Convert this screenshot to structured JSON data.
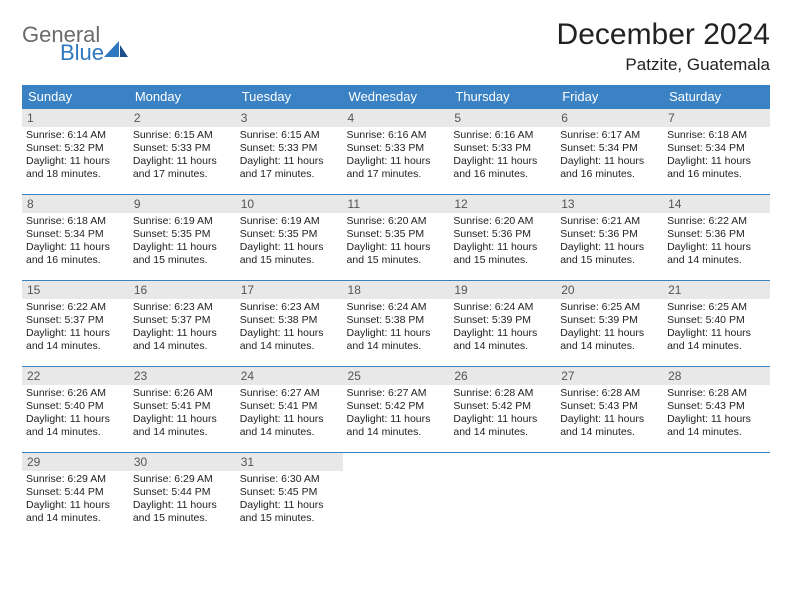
{
  "brand": {
    "line1": "General",
    "line2": "Blue"
  },
  "title": "December 2024",
  "location": "Patzite, Guatemala",
  "colors": {
    "header_bg": "#3a82c4",
    "header_fg": "#ffffff",
    "daynum_bg": "#e8e8e8",
    "rule": "#3a82c4",
    "brand_gray": "#6b6b6b",
    "brand_blue": "#2f78c1"
  },
  "weekdays": [
    "Sunday",
    "Monday",
    "Tuesday",
    "Wednesday",
    "Thursday",
    "Friday",
    "Saturday"
  ],
  "weeks": [
    [
      {
        "n": "1",
        "sr": "Sunrise: 6:14 AM",
        "ss": "Sunset: 5:32 PM",
        "d1": "Daylight: 11 hours",
        "d2": "and 18 minutes."
      },
      {
        "n": "2",
        "sr": "Sunrise: 6:15 AM",
        "ss": "Sunset: 5:33 PM",
        "d1": "Daylight: 11 hours",
        "d2": "and 17 minutes."
      },
      {
        "n": "3",
        "sr": "Sunrise: 6:15 AM",
        "ss": "Sunset: 5:33 PM",
        "d1": "Daylight: 11 hours",
        "d2": "and 17 minutes."
      },
      {
        "n": "4",
        "sr": "Sunrise: 6:16 AM",
        "ss": "Sunset: 5:33 PM",
        "d1": "Daylight: 11 hours",
        "d2": "and 17 minutes."
      },
      {
        "n": "5",
        "sr": "Sunrise: 6:16 AM",
        "ss": "Sunset: 5:33 PM",
        "d1": "Daylight: 11 hours",
        "d2": "and 16 minutes."
      },
      {
        "n": "6",
        "sr": "Sunrise: 6:17 AM",
        "ss": "Sunset: 5:34 PM",
        "d1": "Daylight: 11 hours",
        "d2": "and 16 minutes."
      },
      {
        "n": "7",
        "sr": "Sunrise: 6:18 AM",
        "ss": "Sunset: 5:34 PM",
        "d1": "Daylight: 11 hours",
        "d2": "and 16 minutes."
      }
    ],
    [
      {
        "n": "8",
        "sr": "Sunrise: 6:18 AM",
        "ss": "Sunset: 5:34 PM",
        "d1": "Daylight: 11 hours",
        "d2": "and 16 minutes."
      },
      {
        "n": "9",
        "sr": "Sunrise: 6:19 AM",
        "ss": "Sunset: 5:35 PM",
        "d1": "Daylight: 11 hours",
        "d2": "and 15 minutes."
      },
      {
        "n": "10",
        "sr": "Sunrise: 6:19 AM",
        "ss": "Sunset: 5:35 PM",
        "d1": "Daylight: 11 hours",
        "d2": "and 15 minutes."
      },
      {
        "n": "11",
        "sr": "Sunrise: 6:20 AM",
        "ss": "Sunset: 5:35 PM",
        "d1": "Daylight: 11 hours",
        "d2": "and 15 minutes."
      },
      {
        "n": "12",
        "sr": "Sunrise: 6:20 AM",
        "ss": "Sunset: 5:36 PM",
        "d1": "Daylight: 11 hours",
        "d2": "and 15 minutes."
      },
      {
        "n": "13",
        "sr": "Sunrise: 6:21 AM",
        "ss": "Sunset: 5:36 PM",
        "d1": "Daylight: 11 hours",
        "d2": "and 15 minutes."
      },
      {
        "n": "14",
        "sr": "Sunrise: 6:22 AM",
        "ss": "Sunset: 5:36 PM",
        "d1": "Daylight: 11 hours",
        "d2": "and 14 minutes."
      }
    ],
    [
      {
        "n": "15",
        "sr": "Sunrise: 6:22 AM",
        "ss": "Sunset: 5:37 PM",
        "d1": "Daylight: 11 hours",
        "d2": "and 14 minutes."
      },
      {
        "n": "16",
        "sr": "Sunrise: 6:23 AM",
        "ss": "Sunset: 5:37 PM",
        "d1": "Daylight: 11 hours",
        "d2": "and 14 minutes."
      },
      {
        "n": "17",
        "sr": "Sunrise: 6:23 AM",
        "ss": "Sunset: 5:38 PM",
        "d1": "Daylight: 11 hours",
        "d2": "and 14 minutes."
      },
      {
        "n": "18",
        "sr": "Sunrise: 6:24 AM",
        "ss": "Sunset: 5:38 PM",
        "d1": "Daylight: 11 hours",
        "d2": "and 14 minutes."
      },
      {
        "n": "19",
        "sr": "Sunrise: 6:24 AM",
        "ss": "Sunset: 5:39 PM",
        "d1": "Daylight: 11 hours",
        "d2": "and 14 minutes."
      },
      {
        "n": "20",
        "sr": "Sunrise: 6:25 AM",
        "ss": "Sunset: 5:39 PM",
        "d1": "Daylight: 11 hours",
        "d2": "and 14 minutes."
      },
      {
        "n": "21",
        "sr": "Sunrise: 6:25 AM",
        "ss": "Sunset: 5:40 PM",
        "d1": "Daylight: 11 hours",
        "d2": "and 14 minutes."
      }
    ],
    [
      {
        "n": "22",
        "sr": "Sunrise: 6:26 AM",
        "ss": "Sunset: 5:40 PM",
        "d1": "Daylight: 11 hours",
        "d2": "and 14 minutes."
      },
      {
        "n": "23",
        "sr": "Sunrise: 6:26 AM",
        "ss": "Sunset: 5:41 PM",
        "d1": "Daylight: 11 hours",
        "d2": "and 14 minutes."
      },
      {
        "n": "24",
        "sr": "Sunrise: 6:27 AM",
        "ss": "Sunset: 5:41 PM",
        "d1": "Daylight: 11 hours",
        "d2": "and 14 minutes."
      },
      {
        "n": "25",
        "sr": "Sunrise: 6:27 AM",
        "ss": "Sunset: 5:42 PM",
        "d1": "Daylight: 11 hours",
        "d2": "and 14 minutes."
      },
      {
        "n": "26",
        "sr": "Sunrise: 6:28 AM",
        "ss": "Sunset: 5:42 PM",
        "d1": "Daylight: 11 hours",
        "d2": "and 14 minutes."
      },
      {
        "n": "27",
        "sr": "Sunrise: 6:28 AM",
        "ss": "Sunset: 5:43 PM",
        "d1": "Daylight: 11 hours",
        "d2": "and 14 minutes."
      },
      {
        "n": "28",
        "sr": "Sunrise: 6:28 AM",
        "ss": "Sunset: 5:43 PM",
        "d1": "Daylight: 11 hours",
        "d2": "and 14 minutes."
      }
    ],
    [
      {
        "n": "29",
        "sr": "Sunrise: 6:29 AM",
        "ss": "Sunset: 5:44 PM",
        "d1": "Daylight: 11 hours",
        "d2": "and 14 minutes."
      },
      {
        "n": "30",
        "sr": "Sunrise: 6:29 AM",
        "ss": "Sunset: 5:44 PM",
        "d1": "Daylight: 11 hours",
        "d2": "and 15 minutes."
      },
      {
        "n": "31",
        "sr": "Sunrise: 6:30 AM",
        "ss": "Sunset: 5:45 PM",
        "d1": "Daylight: 11 hours",
        "d2": "and 15 minutes."
      },
      null,
      null,
      null,
      null
    ]
  ]
}
